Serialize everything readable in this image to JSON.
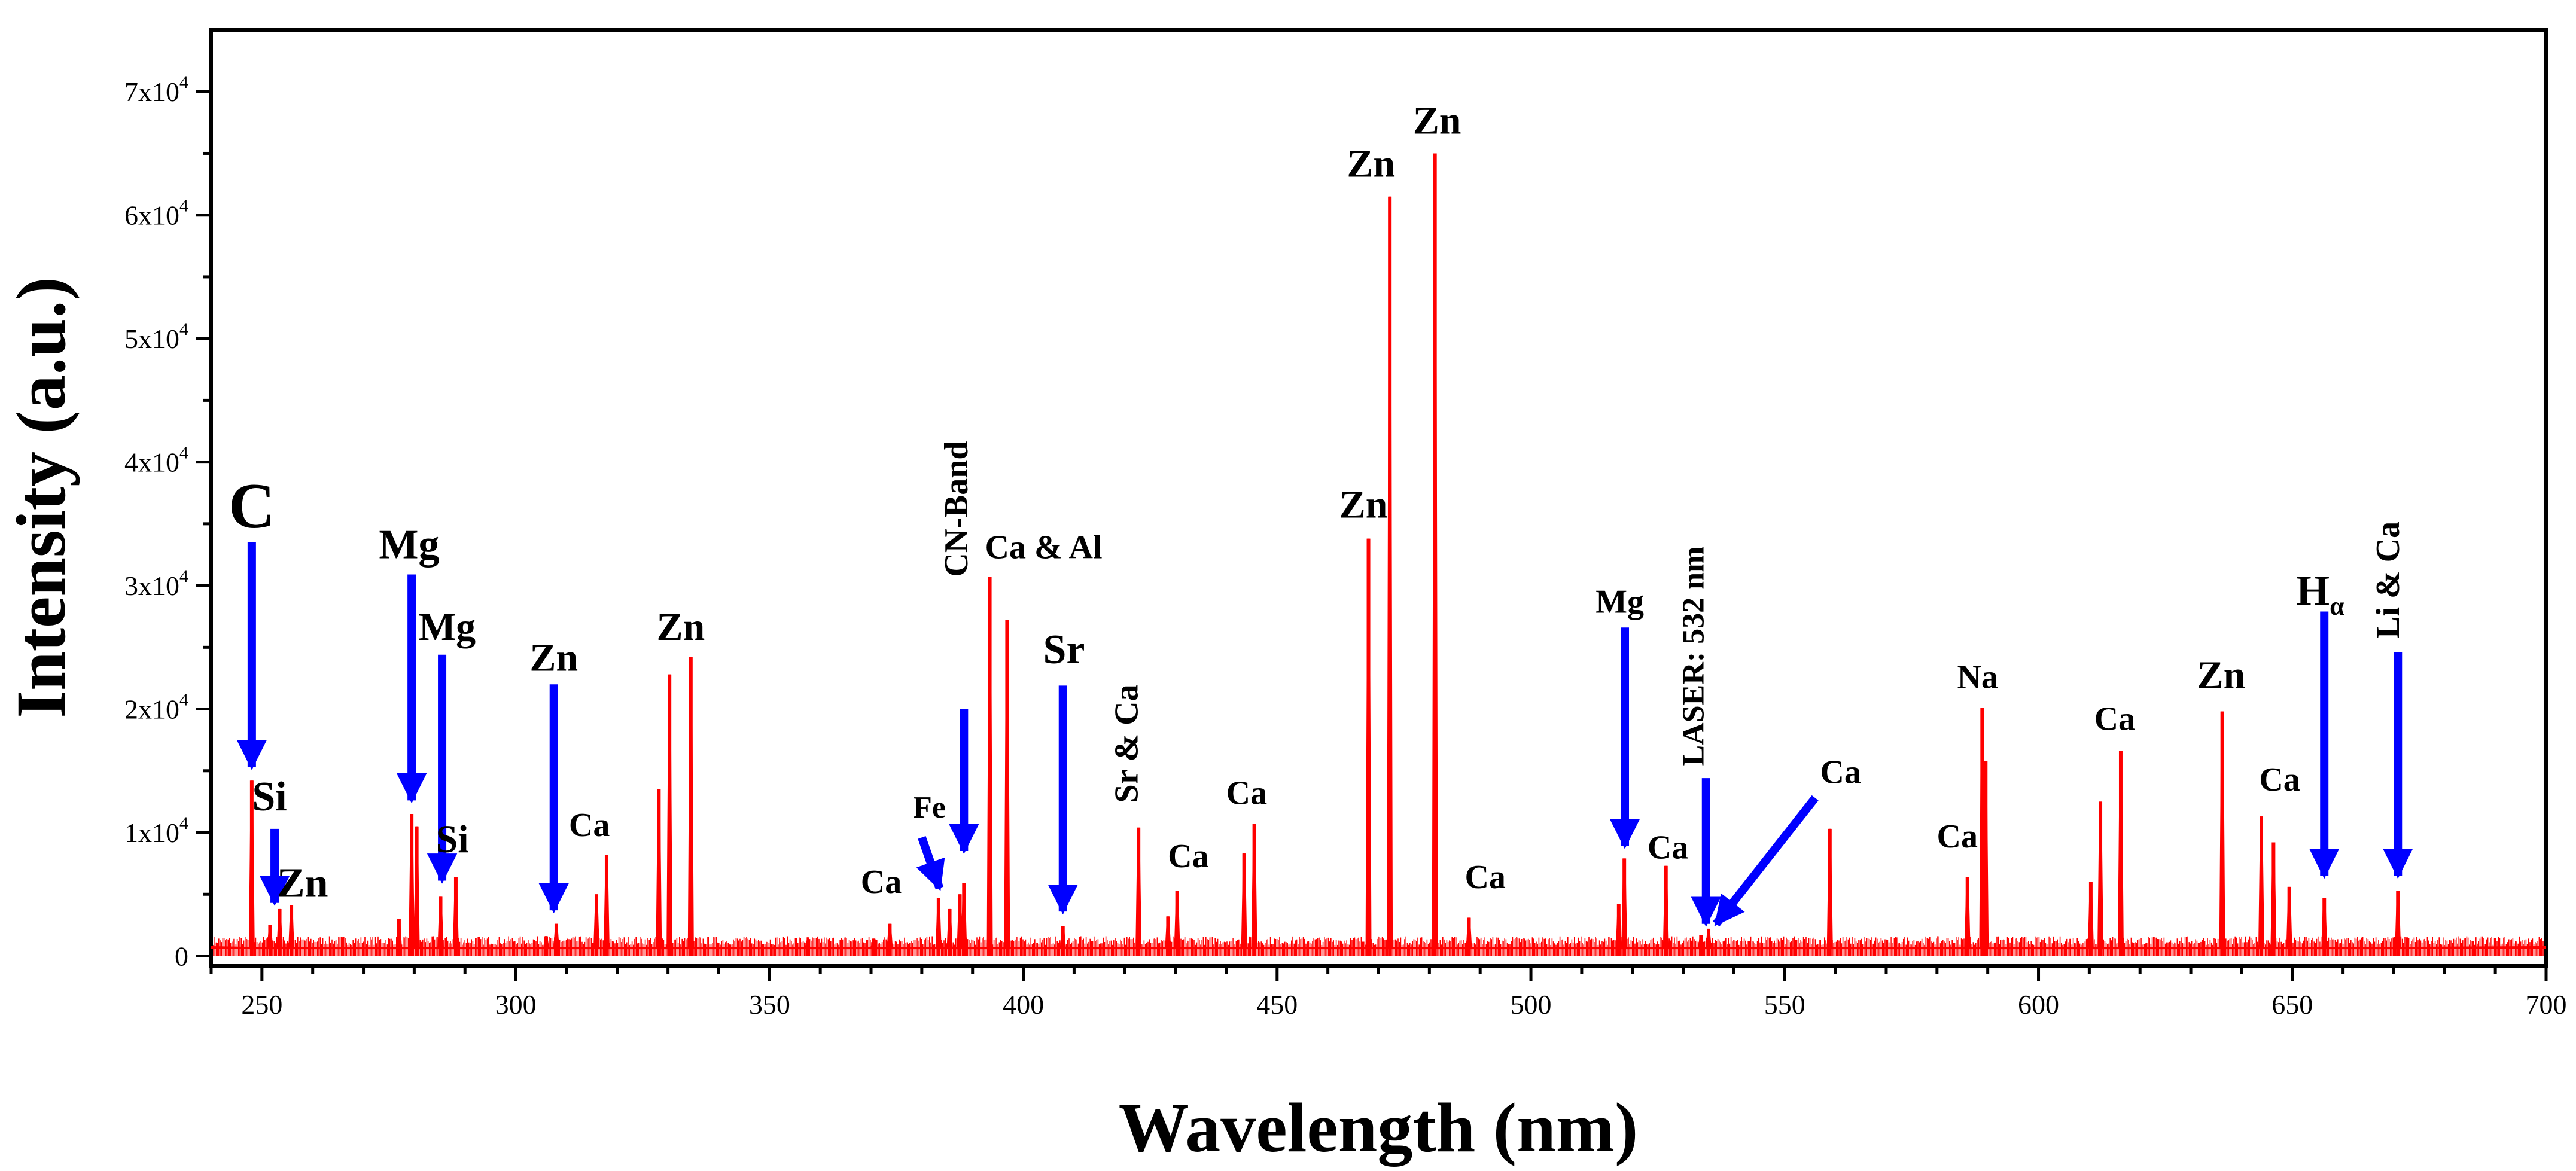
{
  "chart_data": {
    "type": "line",
    "xlabel": "Wavelength (nm)",
    "ylabel": "Intensity (a.u.)",
    "xlim": [
      240,
      700
    ],
    "ylim": [
      -800,
      75000
    ],
    "x_ticks": [
      250,
      300,
      350,
      400,
      450,
      500,
      550,
      600,
      650,
      700
    ],
    "y_ticks": [
      {
        "value": 0,
        "mantissa": "0",
        "exp": ""
      },
      {
        "value": 10000,
        "mantissa": "1x10",
        "exp": "4"
      },
      {
        "value": 20000,
        "mantissa": "2x10",
        "exp": "4"
      },
      {
        "value": 30000,
        "mantissa": "3x10",
        "exp": "4"
      },
      {
        "value": 40000,
        "mantissa": "4x10",
        "exp": "4"
      },
      {
        "value": 50000,
        "mantissa": "5x10",
        "exp": "4"
      },
      {
        "value": 60000,
        "mantissa": "6x10",
        "exp": "4"
      },
      {
        "value": 70000,
        "mantissa": "7x10",
        "exp": "4"
      }
    ],
    "grid": false,
    "line_color": "#ff0000",
    "arrow_color": "#0000ff",
    "highlight_color": "#ff00ff",
    "peaks": [
      {
        "x": 248,
        "y": 14200
      },
      {
        "x": 251.6,
        "y": 2500
      },
      {
        "x": 253.5,
        "y": 3800
      },
      {
        "x": 255.8,
        "y": 4100
      },
      {
        "x": 277,
        "y": 3000
      },
      {
        "x": 279.5,
        "y": 11500
      },
      {
        "x": 280.5,
        "y": 10500
      },
      {
        "x": 285.2,
        "y": 4800
      },
      {
        "x": 288.2,
        "y": 6400
      },
      {
        "x": 306,
        "y": 1600
      },
      {
        "x": 308,
        "y": 2600
      },
      {
        "x": 315.9,
        "y": 5000
      },
      {
        "x": 317.9,
        "y": 8200
      },
      {
        "x": 328.2,
        "y": 13500
      },
      {
        "x": 330.3,
        "y": 22800
      },
      {
        "x": 334.5,
        "y": 24200
      },
      {
        "x": 357.5,
        "y": 1200
      },
      {
        "x": 370.5,
        "y": 1400
      },
      {
        "x": 373.7,
        "y": 2600
      },
      {
        "x": 383.3,
        "y": 4700
      },
      {
        "x": 385.5,
        "y": 3800
      },
      {
        "x": 387.5,
        "y": 5000
      },
      {
        "x": 388.3,
        "y": 5900
      },
      {
        "x": 393.4,
        "y": 30700
      },
      {
        "x": 396.8,
        "y": 27200
      },
      {
        "x": 407.8,
        "y": 2400
      },
      {
        "x": 422.7,
        "y": 10400
      },
      {
        "x": 428.5,
        "y": 3200
      },
      {
        "x": 430.3,
        "y": 5300
      },
      {
        "x": 443.5,
        "y": 8300
      },
      {
        "x": 445.5,
        "y": 10700
      },
      {
        "x": 468,
        "y": 33800
      },
      {
        "x": 472.2,
        "y": 61500
      },
      {
        "x": 481.1,
        "y": 65000
      },
      {
        "x": 487.8,
        "y": 3100
      },
      {
        "x": 517.3,
        "y": 4200
      },
      {
        "x": 518.4,
        "y": 7900
      },
      {
        "x": 526.6,
        "y": 7300
      },
      {
        "x": 533.5,
        "y": 1700
      },
      {
        "x": 535,
        "y": 2200
      },
      {
        "x": 558.9,
        "y": 10300
      },
      {
        "x": 586,
        "y": 6400
      },
      {
        "x": 588.9,
        "y": 20100
      },
      {
        "x": 589.6,
        "y": 15800
      },
      {
        "x": 610.3,
        "y": 6000
      },
      {
        "x": 612.2,
        "y": 12500
      },
      {
        "x": 616.2,
        "y": 16600
      },
      {
        "x": 636.2,
        "y": 19800
      },
      {
        "x": 643.9,
        "y": 11300
      },
      {
        "x": 646.3,
        "y": 9200
      },
      {
        "x": 649.4,
        "y": 5600
      },
      {
        "x": 656.3,
        "y": 4700
      },
      {
        "x": 670.8,
        "y": 5300
      }
    ],
    "annotations": [
      {
        "text": "C",
        "x": 248,
        "y": 34700,
        "size": 108
      },
      {
        "text": "Si",
        "x": 251.5,
        "y": 11800,
        "size": 70
      },
      {
        "text": "Zn",
        "x": 258,
        "y": 4800,
        "size": 70
      },
      {
        "text": "Mg",
        "x": 279,
        "y": 32200,
        "size": 70
      },
      {
        "text": "Mg",
        "x": 286.5,
        "y": 25600,
        "size": 66
      },
      {
        "text": "Si",
        "x": 287.5,
        "y": 8400,
        "size": 66
      },
      {
        "text": "Zn",
        "x": 307.5,
        "y": 23100,
        "size": 66
      },
      {
        "text": "Ca",
        "x": 314.5,
        "y": 9700,
        "size": 56
      },
      {
        "text": "Zn",
        "x": 332.5,
        "y": 25600,
        "size": 66
      },
      {
        "text": "Ca",
        "x": 372,
        "y": 5100,
        "size": 56
      },
      {
        "text": "Fe",
        "x": 381.5,
        "y": 11200,
        "size": 52
      },
      {
        "text": "Ca & Al",
        "x": 404,
        "y": 32200,
        "size": 56
      },
      {
        "text": "Sr",
        "x": 408,
        "y": 23700,
        "size": 70
      },
      {
        "text": "Ca",
        "x": 432.5,
        "y": 7200,
        "size": 56
      },
      {
        "text": "Ca",
        "x": 444,
        "y": 12300,
        "size": 56
      },
      {
        "text": "Zn",
        "x": 467,
        "y": 35500,
        "size": 66
      },
      {
        "text": "Zn",
        "x": 468.5,
        "y": 63100,
        "size": 66
      },
      {
        "text": "Zn",
        "x": 481.5,
        "y": 66600,
        "size": 66
      },
      {
        "text": "Ca",
        "x": 491,
        "y": 5500,
        "size": 56
      },
      {
        "text": "Mg",
        "x": 517.5,
        "y": 27800,
        "size": 56
      },
      {
        "text": "Ca",
        "x": 527,
        "y": 7900,
        "size": 56
      },
      {
        "text": "Ca",
        "x": 561,
        "y": 14000,
        "size": 56
      },
      {
        "text": "Ca",
        "x": 584,
        "y": 8800,
        "size": 56
      },
      {
        "text": "Na",
        "x": 588,
        "y": 21700,
        "size": 56
      },
      {
        "text": "Ca",
        "x": 615,
        "y": 18300,
        "size": 56
      },
      {
        "text": "Zn",
        "x": 636,
        "y": 21700,
        "size": 66
      },
      {
        "text": "Ca",
        "x": 647.5,
        "y": 13400,
        "size": 56
      }
    ],
    "rotated_annotations": [
      {
        "text": "CN-Band",
        "x": 389,
        "y": 30700,
        "size": 56,
        "highlight": true
      },
      {
        "text": "Sr & Ca",
        "x": 422.5,
        "y": 12400,
        "size": 56,
        "highlight": false
      },
      {
        "text": "LASER: 532 nm",
        "x": 534,
        "y": 15400,
        "size": 52,
        "highlight": true
      },
      {
        "text": "Li & Ca",
        "x": 671,
        "y": 25700,
        "size": 56,
        "highlight": false
      }
    ],
    "h_alpha": {
      "main": "H",
      "sub": "α",
      "x": 655.5,
      "y": 28400
    },
    "arrows": [
      {
        "x1": 248,
        "y1": 33500,
        "x2": 248,
        "y2": 15300
      },
      {
        "x1": 252.5,
        "y1": 10300,
        "x2": 252.5,
        "y2": 4300
      },
      {
        "x1": 279.5,
        "y1": 30900,
        "x2": 279.5,
        "y2": 12600
      },
      {
        "x1": 285.5,
        "y1": 24400,
        "x2": 285.5,
        "y2": 6100
      },
      {
        "x1": 307.5,
        "y1": 22000,
        "x2": 307.5,
        "y2": 3700
      },
      {
        "x1": 380,
        "y1": 9600,
        "x2": 383.5,
        "y2": 5500
      },
      {
        "x1": 388.3,
        "y1": 20000,
        "x2": 388.3,
        "y2": 8500
      },
      {
        "x1": 407.8,
        "y1": 21900,
        "x2": 407.8,
        "y2": 3600
      },
      {
        "x1": 518.5,
        "y1": 26600,
        "x2": 518.5,
        "y2": 8900
      },
      {
        "x1": 534.5,
        "y1": 14400,
        "x2": 534.5,
        "y2": 2600
      },
      {
        "x1": 556,
        "y1": 12800,
        "x2": 536.5,
        "y2": 2600
      },
      {
        "x1": 656.3,
        "y1": 27900,
        "x2": 656.3,
        "y2": 6500
      },
      {
        "x1": 670.8,
        "y1": 24600,
        "x2": 670.8,
        "y2": 6500
      }
    ]
  }
}
